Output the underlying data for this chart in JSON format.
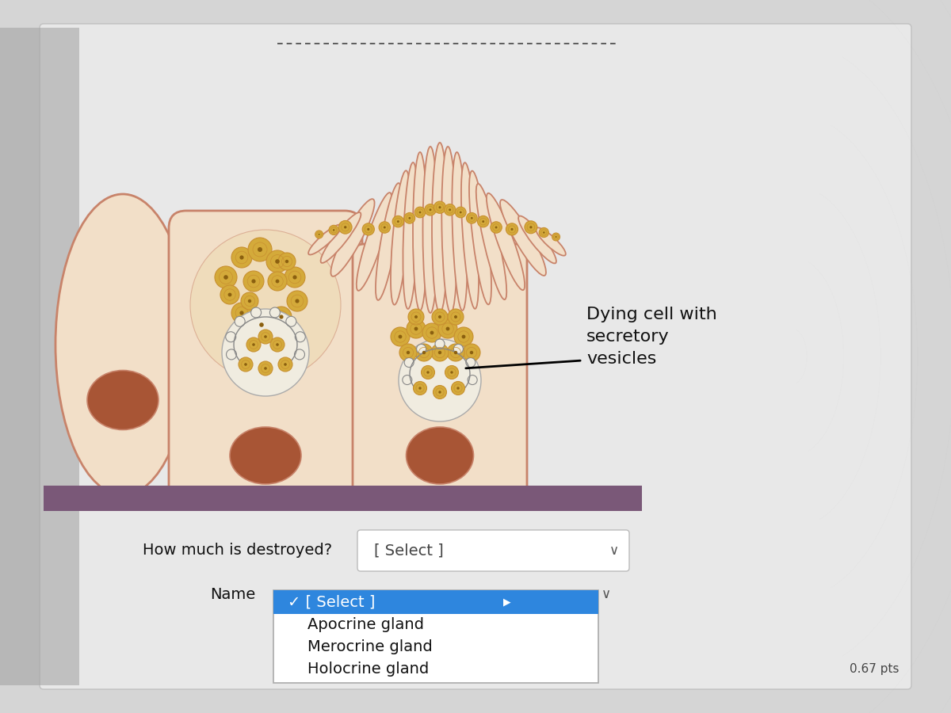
{
  "bg_color": "#d5d5d5",
  "screen_bg": "#e8e8e8",
  "cell_bg": "#f2dfc8",
  "cell_border": "#c8836a",
  "nucleus_color": "#a85535",
  "vesicle_fill": "#d4aa3a",
  "vesicle_ring": "#c89030",
  "vesicle_center": "#8b6010",
  "base_color": "#7a5878",
  "annotation_text": "Dying cell with\nsecretory\nvesicles",
  "question1_label": "How much is destroyed?",
  "question1_select": "[ Select ]",
  "question2_label": "Name",
  "dropdown_options": [
    "[ Select ]",
    "Apocrine gland",
    "Merocrine gland",
    "Holocrine gland"
  ],
  "dropdown_selected_bg": "#2e86de",
  "pts_text": "0.67 pts",
  "label_fontsize": 14,
  "dropdown_fontsize": 14,
  "annot_fontsize": 16
}
